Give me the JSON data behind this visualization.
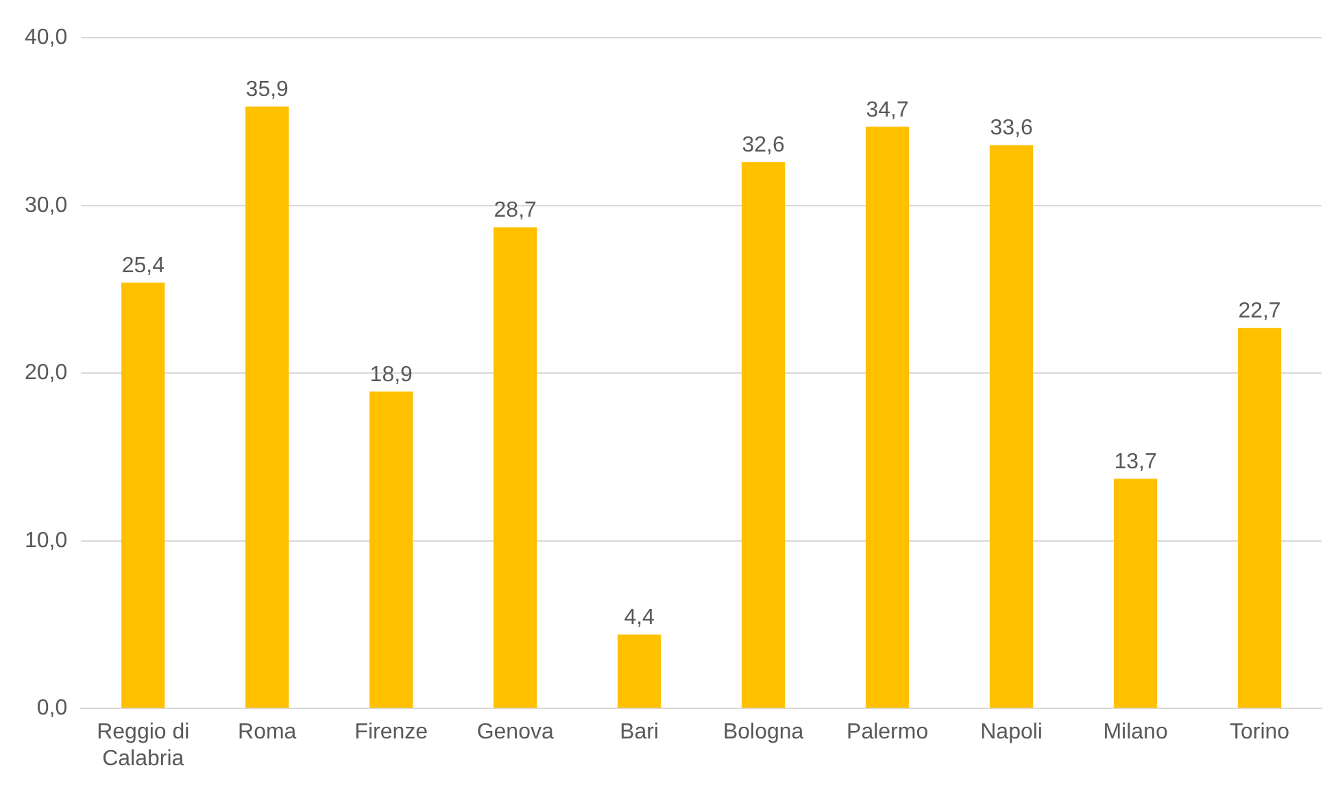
{
  "chart_data": {
    "type": "bar",
    "categories": [
      "Reggio di Calabria",
      "Roma",
      "Firenze",
      "Genova",
      "Bari",
      "Bologna",
      "Palermo",
      "Napoli",
      "Milano",
      "Torino"
    ],
    "values": [
      25.4,
      35.9,
      18.9,
      28.7,
      4.4,
      32.6,
      34.7,
      33.6,
      13.7,
      22.7
    ],
    "value_labels": [
      "25,4",
      "35,9",
      "18,9",
      "28,7",
      "4,4",
      "32,6",
      "34,7",
      "33,6",
      "13,7",
      "22,7"
    ],
    "color": "#ffc000",
    "ylim": [
      0,
      40
    ],
    "yticks": [
      {
        "value": 0,
        "label": "0,0"
      },
      {
        "value": 10,
        "label": "10,0"
      },
      {
        "value": 20,
        "label": "20,0"
      },
      {
        "value": 30,
        "label": "30,0"
      },
      {
        "value": 40,
        "label": "40,0"
      }
    ],
    "grid": "y",
    "legend": false
  }
}
